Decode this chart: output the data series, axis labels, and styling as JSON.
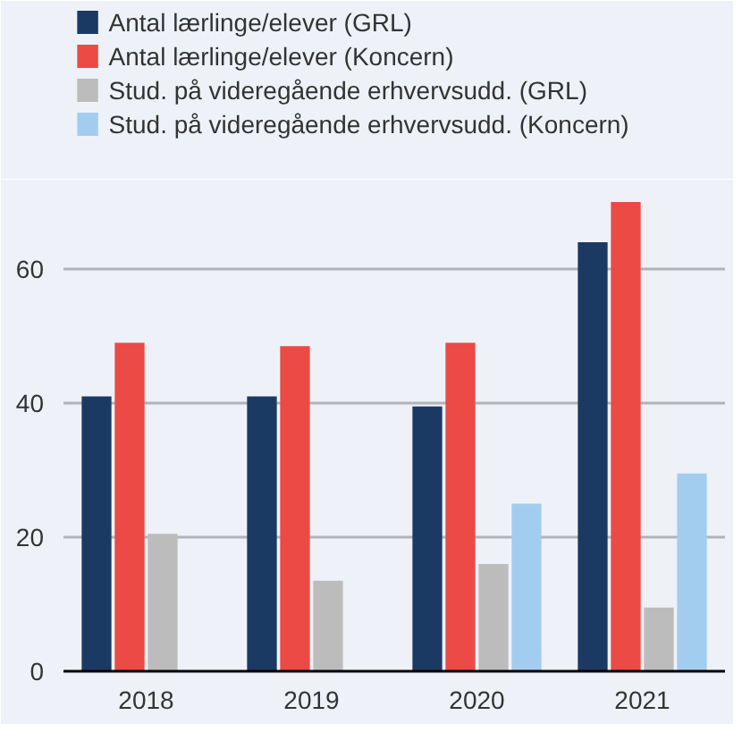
{
  "chart_data": {
    "type": "bar",
    "categories": [
      "2018",
      "2019",
      "2020",
      "2021"
    ],
    "series": [
      {
        "name": "Antal lærlinge/elever (GRL)",
        "color": "#1b3a63",
        "values": [
          41,
          41,
          39.5,
          64
        ]
      },
      {
        "name": "Antal lærlinge/elever (Koncern)",
        "color": "#ec4a45",
        "values": [
          49,
          48.5,
          49,
          70
        ]
      },
      {
        "name": "Stud. på videregående erhvervsudd. (GRL)",
        "color": "#bcbcbc",
        "values": [
          20.5,
          13.5,
          16,
          9.5
        ]
      },
      {
        "name": "Stud. på videregående erhvervsudd. (Koncern)",
        "color": "#a3cdef",
        "values": [
          null,
          null,
          25,
          29.5
        ]
      }
    ],
    "ylim": [
      0,
      72
    ],
    "yticks": [
      0,
      20,
      40,
      60
    ],
    "grid": "y",
    "legend": "top"
  }
}
